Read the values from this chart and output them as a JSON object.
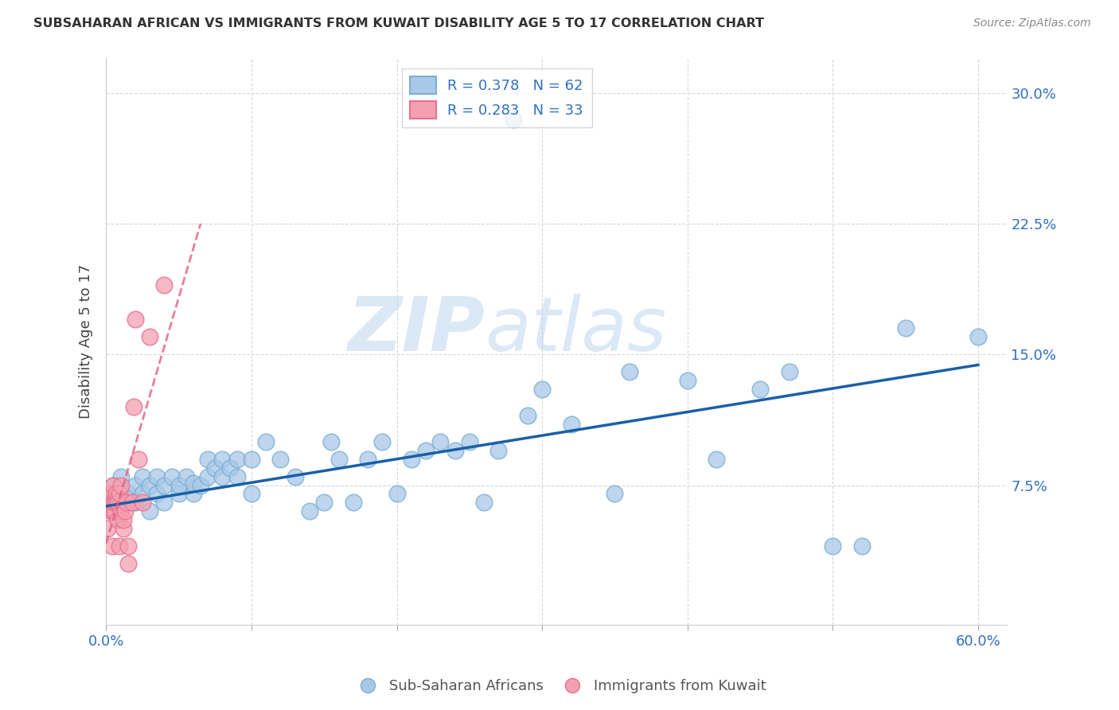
{
  "title": "SUBSAHARAN AFRICAN VS IMMIGRANTS FROM KUWAIT DISABILITY AGE 5 TO 17 CORRELATION CHART",
  "source": "Source: ZipAtlas.com",
  "xlabel": "",
  "ylabel": "Disability Age 5 to 17",
  "xlim": [
    0.0,
    0.62
  ],
  "ylim": [
    -0.005,
    0.32
  ],
  "xticks": [
    0.0,
    0.1,
    0.2,
    0.3,
    0.4,
    0.5,
    0.6
  ],
  "yticks": [
    0.0,
    0.075,
    0.15,
    0.225,
    0.3
  ],
  "blue_R": 0.378,
  "blue_N": 62,
  "pink_R": 0.283,
  "pink_N": 33,
  "blue_color": "#a8c8e8",
  "pink_color": "#f4a0b0",
  "blue_edge_color": "#7aafd4",
  "pink_edge_color": "#e87090",
  "blue_line_color": "#1a5fa8",
  "pink_line_color": "#e06080",
  "tick_label_color": "#3070c0",
  "grid_color": "#d8d8d8",
  "background_color": "#ffffff",
  "watermark_zip": "ZIP",
  "watermark_atlas": "atlas",
  "blue_scatter_x": [
    0.005,
    0.01,
    0.015,
    0.02,
    0.02,
    0.025,
    0.025,
    0.03,
    0.03,
    0.035,
    0.035,
    0.04,
    0.04,
    0.045,
    0.05,
    0.05,
    0.055,
    0.06,
    0.06,
    0.065,
    0.07,
    0.07,
    0.075,
    0.08,
    0.08,
    0.085,
    0.09,
    0.09,
    0.1,
    0.1,
    0.11,
    0.12,
    0.13,
    0.14,
    0.15,
    0.155,
    0.16,
    0.17,
    0.18,
    0.19,
    0.2,
    0.21,
    0.22,
    0.23,
    0.24,
    0.25,
    0.26,
    0.27,
    0.28,
    0.29,
    0.3,
    0.32,
    0.35,
    0.36,
    0.4,
    0.42,
    0.45,
    0.47,
    0.5,
    0.52,
    0.55,
    0.6
  ],
  "blue_scatter_y": [
    0.075,
    0.08,
    0.07,
    0.065,
    0.075,
    0.08,
    0.07,
    0.075,
    0.06,
    0.08,
    0.07,
    0.065,
    0.075,
    0.08,
    0.07,
    0.075,
    0.08,
    0.07,
    0.076,
    0.075,
    0.08,
    0.09,
    0.085,
    0.08,
    0.09,
    0.085,
    0.08,
    0.09,
    0.07,
    0.09,
    0.1,
    0.09,
    0.08,
    0.06,
    0.065,
    0.1,
    0.09,
    0.065,
    0.09,
    0.1,
    0.07,
    0.09,
    0.095,
    0.1,
    0.095,
    0.1,
    0.065,
    0.095,
    0.285,
    0.115,
    0.13,
    0.11,
    0.07,
    0.14,
    0.135,
    0.09,
    0.13,
    0.14,
    0.04,
    0.04,
    0.165,
    0.16
  ],
  "pink_scatter_x": [
    0.001,
    0.001,
    0.001,
    0.003,
    0.003,
    0.003,
    0.004,
    0.005,
    0.005,
    0.005,
    0.006,
    0.006,
    0.007,
    0.007,
    0.008,
    0.008,
    0.009,
    0.009,
    0.01,
    0.01,
    0.012,
    0.012,
    0.013,
    0.014,
    0.015,
    0.015,
    0.018,
    0.019,
    0.02,
    0.022,
    0.025,
    0.03,
    0.04
  ],
  "pink_scatter_y": [
    0.065,
    0.07,
    0.05,
    0.06,
    0.065,
    0.07,
    0.04,
    0.06,
    0.065,
    0.075,
    0.06,
    0.065,
    0.065,
    0.07,
    0.055,
    0.065,
    0.07,
    0.04,
    0.06,
    0.075,
    0.05,
    0.055,
    0.06,
    0.065,
    0.04,
    0.03,
    0.065,
    0.12,
    0.17,
    0.09,
    0.065,
    0.16,
    0.19
  ],
  "pink_line_x_start": 0.0,
  "pink_line_x_end": 0.065,
  "blue_line_y_at_0": 0.063,
  "blue_line_y_at_60": 0.144
}
